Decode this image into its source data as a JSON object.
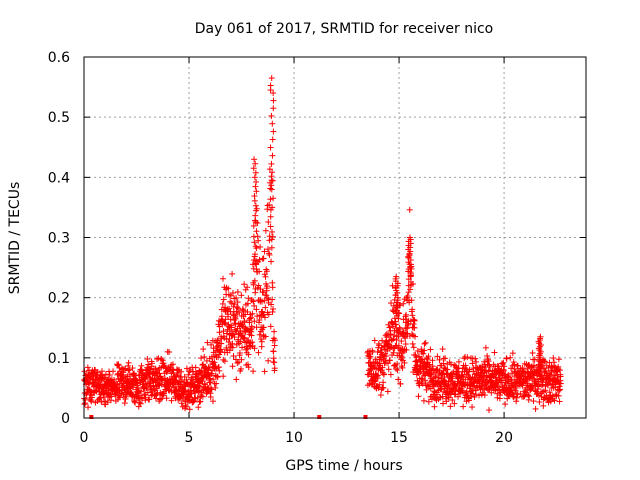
{
  "chart_data": {
    "type": "scatter",
    "title": "Day 061 of 2017, SRMTID for receiver nico",
    "xlabel": "GPS time / hours",
    "ylabel": "SRMTID / TECUs",
    "xlim": [
      0,
      23.9
    ],
    "ylim": [
      0,
      0.6
    ],
    "xticks": [
      "0",
      "5",
      "10",
      "15",
      "20"
    ],
    "yticks": [
      "0",
      "0.1",
      "0.2",
      "0.3",
      "0.4",
      "0.5",
      "0.6"
    ],
    "grid": true,
    "marker": "plus",
    "color": "#ff0000",
    "data_gaps_at_zero_hours": [
      0.35,
      11.2,
      13.4
    ],
    "series": [
      {
        "name": "SRMTID",
        "segments": [
          {
            "x_range": [
              0.0,
              9.1
            ]
          },
          {
            "x_range": [
              13.5,
              22.7
            ]
          }
        ],
        "profile": [
          {
            "x": 0.0,
            "y": 0.055
          },
          {
            "x": 0.5,
            "y": 0.06
          },
          {
            "x": 0.8,
            "y": 0.045
          },
          {
            "x": 1.5,
            "y": 0.05
          },
          {
            "x": 2.0,
            "y": 0.06
          },
          {
            "x": 2.5,
            "y": 0.05
          },
          {
            "x": 3.0,
            "y": 0.065
          },
          {
            "x": 3.5,
            "y": 0.06
          },
          {
            "x": 4.0,
            "y": 0.065
          },
          {
            "x": 4.5,
            "y": 0.055
          },
          {
            "x": 5.0,
            "y": 0.045
          },
          {
            "x": 5.5,
            "y": 0.06
          },
          {
            "x": 6.0,
            "y": 0.075
          },
          {
            "x": 6.3,
            "y": 0.1
          },
          {
            "x": 6.6,
            "y": 0.15
          },
          {
            "x": 7.0,
            "y": 0.16
          },
          {
            "x": 7.5,
            "y": 0.14
          },
          {
            "x": 8.0,
            "y": 0.15
          },
          {
            "x": 8.2,
            "y": 0.28
          },
          {
            "x": 8.4,
            "y": 0.17
          },
          {
            "x": 8.7,
            "y": 0.2
          },
          {
            "x": 8.9,
            "y": 0.4
          },
          {
            "x": 9.0,
            "y": 0.12
          },
          {
            "x": 9.1,
            "y": 0.1
          },
          {
            "x": 13.5,
            "y": 0.09
          },
          {
            "x": 14.0,
            "y": 0.08
          },
          {
            "x": 14.5,
            "y": 0.11
          },
          {
            "x": 14.8,
            "y": 0.15
          },
          {
            "x": 15.2,
            "y": 0.12
          },
          {
            "x": 15.5,
            "y": 0.22
          },
          {
            "x": 15.8,
            "y": 0.09
          },
          {
            "x": 16.5,
            "y": 0.07
          },
          {
            "x": 17.0,
            "y": 0.065
          },
          {
            "x": 18.0,
            "y": 0.06
          },
          {
            "x": 19.0,
            "y": 0.065
          },
          {
            "x": 20.0,
            "y": 0.06
          },
          {
            "x": 21.0,
            "y": 0.06
          },
          {
            "x": 21.8,
            "y": 0.07
          },
          {
            "x": 22.2,
            "y": 0.06
          },
          {
            "x": 22.7,
            "y": 0.065
          }
        ],
        "peaks": [
          {
            "x": 8.15,
            "y": 0.43
          },
          {
            "x": 8.95,
            "y": 0.565
          },
          {
            "x": 15.5,
            "y": 0.3
          },
          {
            "x": 14.9,
            "y": 0.235
          },
          {
            "x": 21.7,
            "y": 0.135
          }
        ]
      }
    ]
  }
}
